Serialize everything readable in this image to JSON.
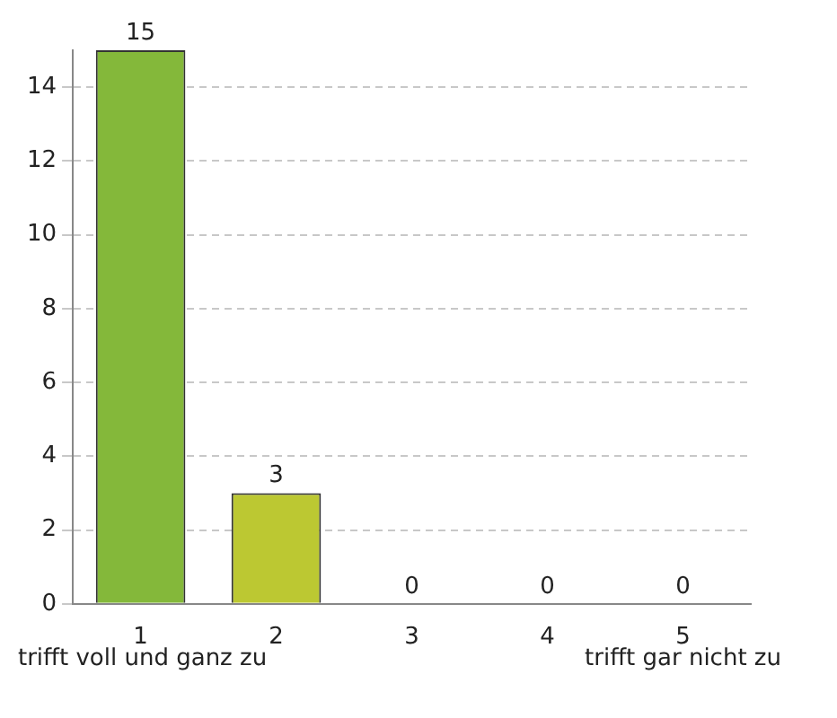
{
  "chart_data": {
    "type": "bar",
    "categories": [
      "1",
      "2",
      "3",
      "4",
      "5"
    ],
    "values": [
      15,
      3,
      0,
      0,
      0
    ],
    "colors": [
      "#84b83a",
      "#bcc832",
      "#bcc832",
      "#bcc832",
      "#bcc832"
    ],
    "ylim": [
      0,
      15
    ],
    "yticks": [
      0,
      2,
      4,
      6,
      8,
      10,
      12,
      14
    ],
    "grid": "y",
    "data_labels": true,
    "legend": false,
    "annotations": [
      "trifft voll und ganz zu",
      "trifft gar nicht zu"
    ]
  }
}
